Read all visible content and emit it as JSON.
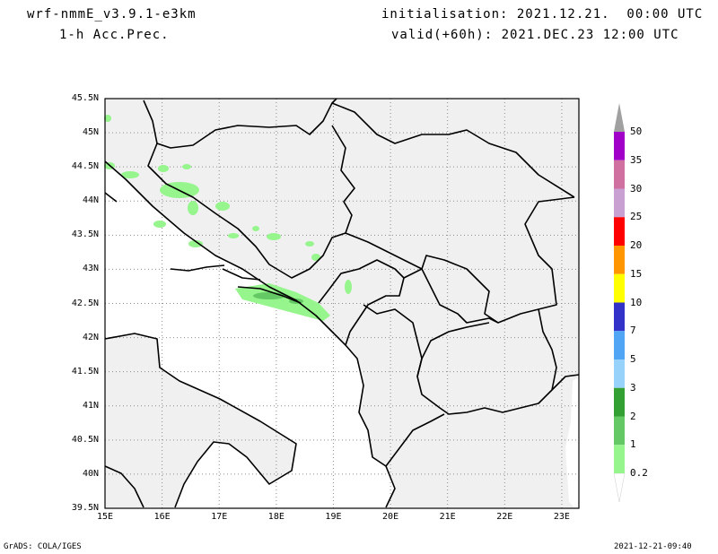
{
  "header": {
    "model": "wrf-nmmE_v3.9.1-e3km",
    "field": "1-h Acc.Prec.",
    "initialisation": "initialisation: 2021.12.21.  00:00 UTC",
    "valid": "valid(+60h): 2021.DEC.23 12:00 UTC"
  },
  "map": {
    "lat_labels": [
      "45.5N",
      "45N",
      "44.5N",
      "44N",
      "43.5N",
      "43N",
      "42.5N",
      "42N",
      "41.5N",
      "41N",
      "40.5N",
      "40N",
      "39.5N"
    ],
    "lon_labels": [
      "15E",
      "16E",
      "17E",
      "18E",
      "19E",
      "20E",
      "21E",
      "22E",
      "23E"
    ],
    "lat_range": [
      39.5,
      45.5
    ],
    "lon_range": [
      15.0,
      23.3
    ],
    "land_color": "#f0f0f0",
    "grid": true
  },
  "colorbar": {
    "labels": [
      "50",
      "35",
      "30",
      "25",
      "20",
      "15",
      "10",
      "7",
      "5",
      "3",
      "2",
      "1",
      "0.2"
    ],
    "colors": [
      "#a000c8",
      "#d070a0",
      "#c8a0d2",
      "#ff0000",
      "#ff9600",
      "#ffff00",
      "#3232c8",
      "#50a5f5",
      "#96d2fa",
      "#32a032",
      "#64c864",
      "#96f58c"
    ],
    "top_arrow_color": "#a0a0a0"
  },
  "footer": {
    "credit": "GrADS: COLA/IGES",
    "timestamp": "2021-12-21-09:40"
  }
}
